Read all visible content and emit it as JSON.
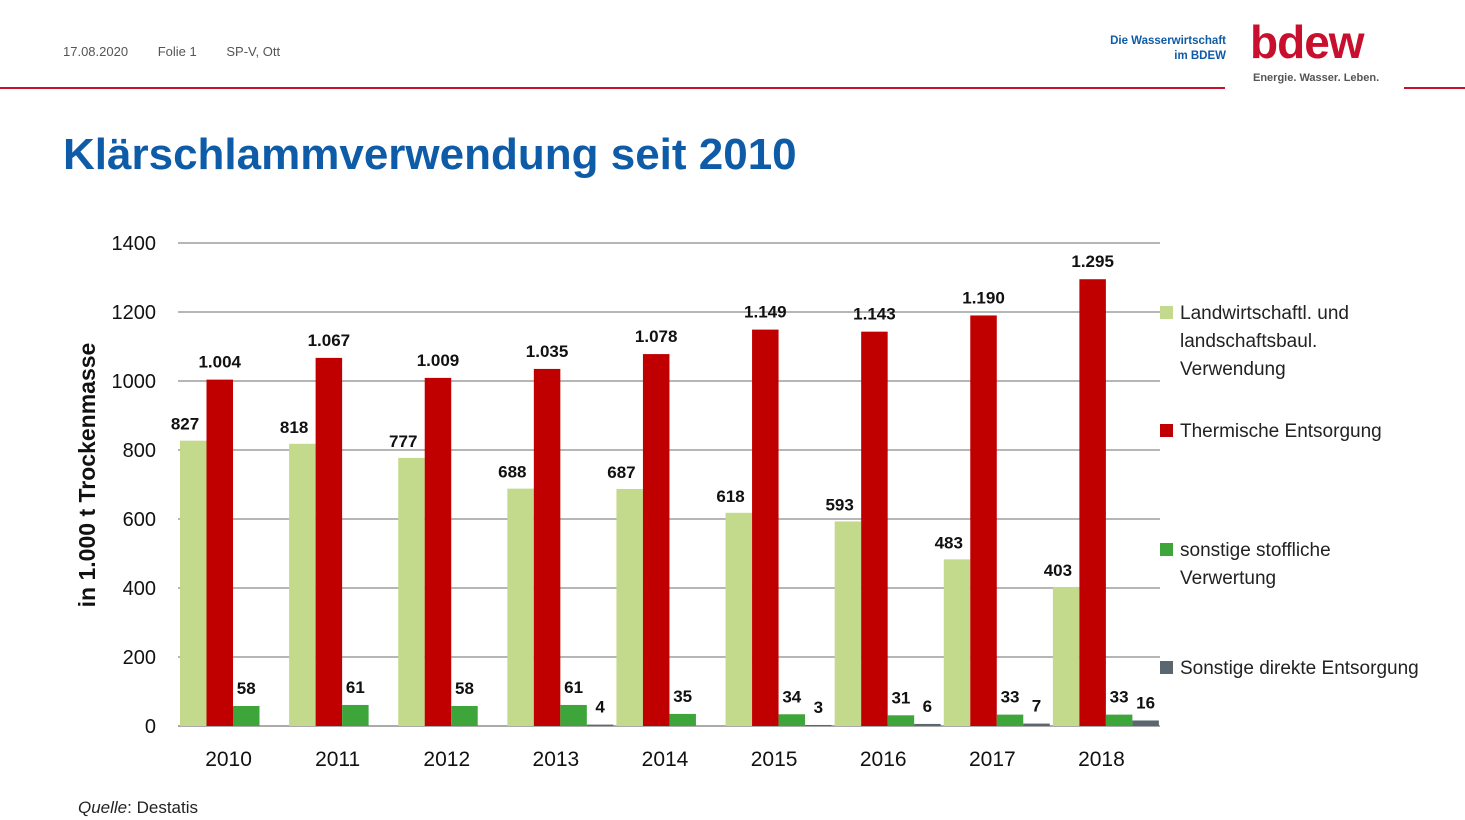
{
  "header": {
    "date": "17.08.2020",
    "slide": "Folie 1",
    "author": "SP-V, Ott"
  },
  "logo": {
    "tagline_1": "Die Wasserwirtschaft",
    "tagline_2": "im BDEW",
    "wordmark": "bdew",
    "claim": "Energie. Wasser. Leben."
  },
  "title": "Klärschlammverwendung seit 2010",
  "source": {
    "label": "Quelle",
    "text": ": Destatis"
  },
  "colors": {
    "brand_red": "#c8102e",
    "brand_blue": "#0e5ca8"
  },
  "chart_data": {
    "type": "bar",
    "ylabel": "in 1.000 t Trockenmasse",
    "ylim": [
      0,
      1400
    ],
    "yticks": [
      "0",
      "200",
      "400",
      "600",
      "800",
      "1000",
      "1200",
      "1400"
    ],
    "grid": true,
    "legend_position": "right",
    "categories": [
      "2010",
      "2011",
      "2012",
      "2013",
      "2014",
      "2015",
      "2016",
      "2017",
      "2018"
    ],
    "series": [
      {
        "name": "Landwirtschaftl. und landschaftsbaul. Verwendung",
        "color": "#c3d98b",
        "values": [
          827,
          818,
          777,
          688,
          687,
          618,
          593,
          483,
          403
        ],
        "labels": [
          "827",
          "818",
          "777",
          "688",
          "687",
          "618",
          "593",
          "483",
          "403"
        ]
      },
      {
        "name": "Thermische Entsorgung",
        "color": "#c00000",
        "values": [
          1004,
          1067,
          1009,
          1035,
          1078,
          1149,
          1143,
          1190,
          1295
        ],
        "labels": [
          "1.004",
          "1.067",
          "1.009",
          "1.035",
          "1.078",
          "1.149",
          "1.143",
          "1.190",
          "1.295"
        ]
      },
      {
        "name": "sonstige stoffliche Verwertung",
        "color": "#3ea53a",
        "values": [
          58,
          61,
          58,
          61,
          35,
          34,
          31,
          33,
          33
        ],
        "labels": [
          "58",
          "61",
          "58",
          "61",
          "35",
          "34",
          "31",
          "33",
          "33"
        ]
      },
      {
        "name": "Sonstige direkte Entsorgung",
        "color": "#5a6670",
        "values": [
          null,
          null,
          null,
          4,
          null,
          3,
          6,
          7,
          16
        ],
        "labels": [
          "",
          "",
          "",
          "4",
          "",
          "3",
          "6",
          "7",
          "16"
        ]
      }
    ]
  }
}
